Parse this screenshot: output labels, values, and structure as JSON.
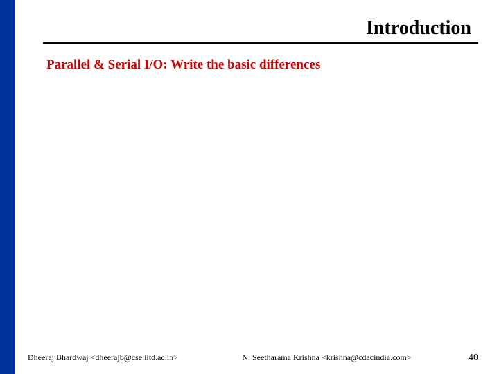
{
  "colors": {
    "leftBar": "#003399",
    "title": "#000000",
    "subtitle": "#cc0000",
    "divider": "#000000",
    "footer": "#000000",
    "background": "#ffffff"
  },
  "header": {
    "title": "Introduction",
    "subtitle": "Parallel & Serial I/O: Write the basic differences"
  },
  "footer": {
    "author1": "Dheeraj Bhardwaj <dheerajb@cse.iitd.ac.in>",
    "author2": "N. Seetharama Krishna <krishna@cdacindia.com>",
    "pageNumber": "40"
  }
}
